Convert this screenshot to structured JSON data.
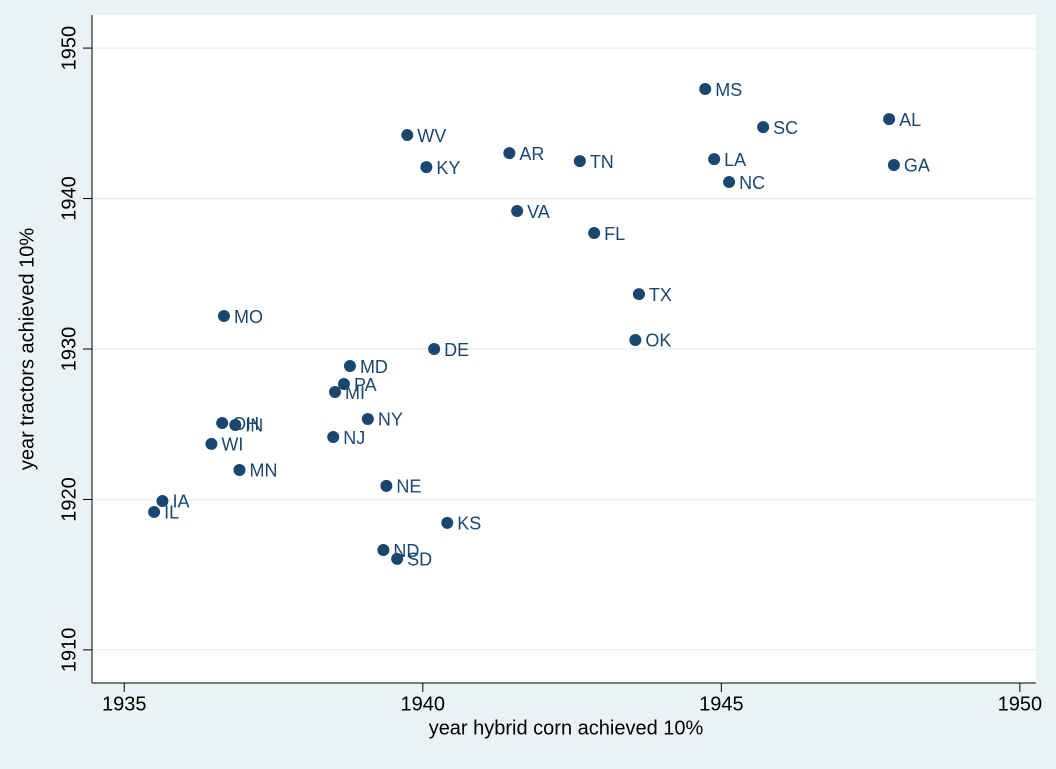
{
  "chart_data": {
    "type": "scatter",
    "x_label": "year hybrid corn achieved 10%",
    "y_label": "year tractors achieved 10%",
    "labels": [
      "IL",
      "IA",
      "WI",
      "OH",
      "IN",
      "MN",
      "MO",
      "MI",
      "PA",
      "NJ",
      "MD",
      "NY",
      "NE",
      "ND",
      "SD",
      "KS",
      "DE",
      "WV",
      "KY",
      "AR",
      "VA",
      "TN",
      "FL",
      "TX",
      "OK",
      "MS",
      "LA",
      "NC",
      "SC",
      "AL",
      "GA"
    ],
    "x": [
      1935.5,
      1935.64,
      1936.46,
      1936.64,
      1936.86,
      1936.93,
      1936.67,
      1938.53,
      1938.68,
      1938.5,
      1938.78,
      1939.08,
      1939.39,
      1939.34,
      1939.57,
      1940.41,
      1940.19,
      1939.74,
      1940.06,
      1941.45,
      1941.58,
      1942.63,
      1942.87,
      1943.62,
      1943.56,
      1944.73,
      1944.88,
      1945.13,
      1945.7,
      1947.81,
      1947.89
    ],
    "y": [
      1919.17,
      1919.9,
      1923.69,
      1925.08,
      1924.95,
      1921.96,
      1932.19,
      1927.14,
      1927.67,
      1924.15,
      1928.87,
      1925.35,
      1920.9,
      1916.64,
      1916.05,
      1918.44,
      1930.0,
      1944.22,
      1942.09,
      1943.02,
      1939.17,
      1942.49,
      1937.71,
      1933.65,
      1930.6,
      1947.28,
      1942.62,
      1941.1,
      1944.75,
      1945.28,
      1942.23
    ],
    "color": "#1a476f",
    "xlim": [
      1934.46,
      1950.27
    ],
    "xticks": [
      1935,
      1940,
      1945,
      1950
    ],
    "ylim": [
      1907.8,
      1952.2
    ],
    "yticks": [
      1910,
      1920,
      1930,
      1940,
      1950
    ],
    "grid": true
  }
}
